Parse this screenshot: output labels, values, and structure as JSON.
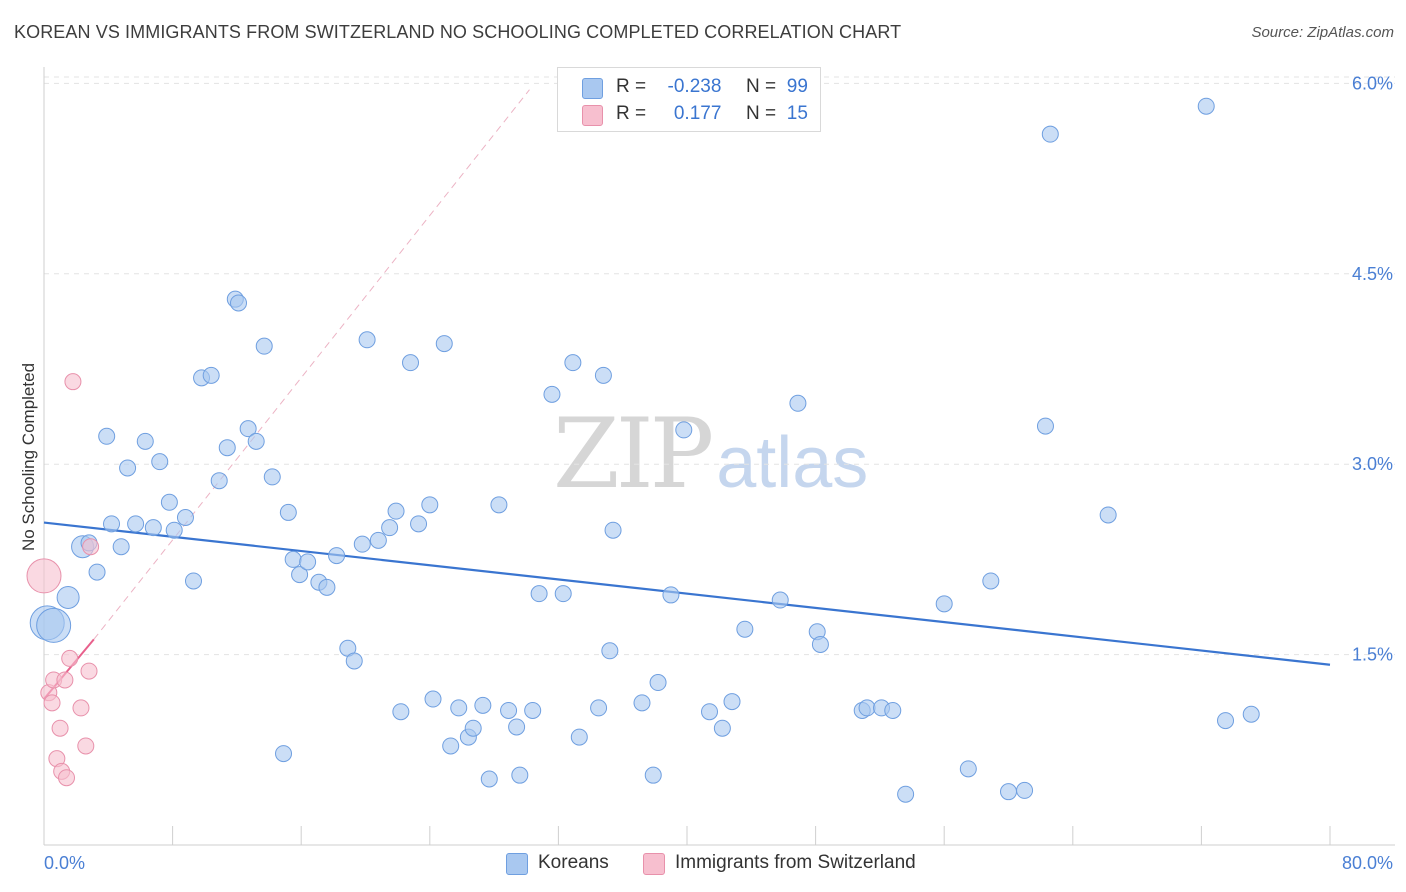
{
  "header": {
    "title": "KOREAN VS IMMIGRANTS FROM SWITZERLAND NO SCHOOLING COMPLETED CORRELATION CHART",
    "source": "Source: ZipAtlas.com"
  },
  "watermark": {
    "zip": "ZIP",
    "atlas": "atlas"
  },
  "legend_top": {
    "rows": [
      {
        "r_label": "R =",
        "r_value": "-0.238",
        "n_label": "N =",
        "n_value": "99",
        "color": "#a9c8f0",
        "border": "#6f9fe0"
      },
      {
        "r_label": "R =",
        "r_value": "0.177",
        "n_label": "N =",
        "n_value": "15",
        "color": "#f7bfcf",
        "border": "#e891ab"
      }
    ]
  },
  "legend_bottom": [
    {
      "label": "Koreans",
      "color": "#a9c8f0",
      "border": "#6f9fe0"
    },
    {
      "label": "Immigrants from Switzerland",
      "color": "#f7bfcf",
      "border": "#e891ab"
    }
  ],
  "colors": {
    "blue_fill": "#a9c8f0",
    "blue_stroke": "#6f9fe0",
    "blue_line": "#3a75d0",
    "pink_fill": "#f7bfcf",
    "pink_stroke": "#e891ab",
    "pink_line": "#e8608c",
    "grid": "#e3e3e3",
    "tick_text": "#4a7fd4"
  },
  "chart_data": {
    "type": "scatter",
    "title": "KOREAN VS IMMIGRANTS FROM SWITZERLAND NO SCHOOLING COMPLETED CORRELATION CHART",
    "xlabel": "",
    "ylabel": "No Schooling Completed",
    "xlim": [
      0,
      80
    ],
    "ylim": [
      0,
      6.2
    ],
    "x_tick_labels": [
      "0.0%",
      "80.0%"
    ],
    "y_ticks": [
      1.5,
      3.0,
      4.5,
      6.0
    ],
    "y_tick_labels": [
      "1.5%",
      "3.0%",
      "4.5%",
      "6.0%"
    ],
    "grid": true,
    "legend_position": "top-center",
    "series": [
      {
        "name": "Koreans",
        "r": -0.238,
        "n": 99,
        "trend": {
          "x": [
            0,
            80
          ],
          "y": [
            2.54,
            1.42
          ]
        },
        "points": [
          [
            0.2,
            1.75,
            3
          ],
          [
            0.6,
            1.73,
            3
          ],
          [
            1.5,
            1.95,
            2
          ],
          [
            2.4,
            2.35,
            2
          ],
          [
            2.8,
            2.38,
            1
          ],
          [
            3.3,
            2.15,
            1
          ],
          [
            3.9,
            3.22,
            1
          ],
          [
            4.2,
            2.53,
            1
          ],
          [
            4.8,
            2.35,
            1
          ],
          [
            5.2,
            2.97,
            1
          ],
          [
            5.7,
            2.53,
            1
          ],
          [
            6.3,
            3.18,
            1
          ],
          [
            6.8,
            2.5,
            1
          ],
          [
            7.2,
            3.02,
            1
          ],
          [
            7.8,
            2.7,
            1
          ],
          [
            8.1,
            2.48,
            1
          ],
          [
            8.8,
            2.58,
            1
          ],
          [
            9.3,
            2.08,
            1
          ],
          [
            9.8,
            3.68,
            1
          ],
          [
            10.4,
            3.7,
            1
          ],
          [
            10.9,
            2.87,
            1
          ],
          [
            11.4,
            3.13,
            1
          ],
          [
            11.9,
            4.3,
            1
          ],
          [
            12.1,
            4.27,
            1
          ],
          [
            12.7,
            3.28,
            1
          ],
          [
            13.2,
            3.18,
            1
          ],
          [
            13.7,
            3.93,
            1
          ],
          [
            14.2,
            2.9,
            1
          ],
          [
            14.9,
            0.72,
            1
          ],
          [
            15.2,
            2.62,
            1
          ],
          [
            15.5,
            2.25,
            1
          ],
          [
            15.9,
            2.13,
            1
          ],
          [
            16.4,
            2.23,
            1
          ],
          [
            17.1,
            2.07,
            1
          ],
          [
            17.6,
            2.03,
            1
          ],
          [
            18.2,
            2.28,
            1
          ],
          [
            18.9,
            1.55,
            1
          ],
          [
            19.3,
            1.45,
            1
          ],
          [
            19.8,
            2.37,
            1
          ],
          [
            20.1,
            3.98,
            1
          ],
          [
            20.8,
            2.4,
            1
          ],
          [
            21.5,
            2.5,
            1
          ],
          [
            21.9,
            2.63,
            1
          ],
          [
            22.2,
            1.05,
            1
          ],
          [
            22.8,
            3.8,
            1
          ],
          [
            23.3,
            2.53,
            1
          ],
          [
            24.0,
            2.68,
            1
          ],
          [
            24.2,
            1.15,
            1
          ],
          [
            24.9,
            3.95,
            1
          ],
          [
            25.3,
            0.78,
            1
          ],
          [
            25.8,
            1.08,
            1
          ],
          [
            26.4,
            0.85,
            1
          ],
          [
            26.7,
            0.92,
            1
          ],
          [
            27.3,
            1.1,
            1
          ],
          [
            27.7,
            0.52,
            1
          ],
          [
            28.3,
            2.68,
            1
          ],
          [
            28.9,
            1.06,
            1
          ],
          [
            29.4,
            0.93,
            1
          ],
          [
            29.6,
            0.55,
            1
          ],
          [
            30.4,
            1.06,
            1
          ],
          [
            30.8,
            1.98,
            1
          ],
          [
            31.6,
            3.55,
            1
          ],
          [
            32.3,
            1.98,
            1
          ],
          [
            32.9,
            3.8,
            1
          ],
          [
            33.3,
            0.85,
            1
          ],
          [
            34.5,
            1.08,
            1
          ],
          [
            34.8,
            3.7,
            1
          ],
          [
            35.2,
            1.53,
            1
          ],
          [
            35.4,
            2.48,
            1
          ],
          [
            37.2,
            1.12,
            1
          ],
          [
            37.9,
            0.55,
            1
          ],
          [
            38.2,
            1.28,
            1
          ],
          [
            39.0,
            1.97,
            1
          ],
          [
            39.8,
            3.27,
            1
          ],
          [
            41.4,
            1.05,
            1
          ],
          [
            42.2,
            0.92,
            1
          ],
          [
            42.8,
            1.13,
            1
          ],
          [
            43.6,
            1.7,
            1
          ],
          [
            45.8,
            1.93,
            1
          ],
          [
            46.9,
            3.48,
            1
          ],
          [
            48.1,
            1.68,
            1
          ],
          [
            48.3,
            1.58,
            1
          ],
          [
            50.9,
            1.06,
            1
          ],
          [
            51.2,
            1.08,
            1
          ],
          [
            52.1,
            1.08,
            1
          ],
          [
            52.8,
            1.06,
            1
          ],
          [
            53.6,
            0.4,
            1
          ],
          [
            56.0,
            1.9,
            1
          ],
          [
            57.5,
            0.6,
            1
          ],
          [
            58.9,
            2.08,
            1
          ],
          [
            60.0,
            0.42,
            1
          ],
          [
            61.0,
            0.43,
            1
          ],
          [
            62.3,
            3.3,
            1
          ],
          [
            62.6,
            5.6,
            1
          ],
          [
            66.2,
            2.6,
            1
          ],
          [
            72.3,
            5.82,
            1
          ],
          [
            73.5,
            0.98,
            1
          ],
          [
            75.1,
            1.03,
            1
          ]
        ]
      },
      {
        "name": "Immigrants from Switzerland",
        "r": 0.177,
        "n": 15,
        "trend": {
          "x": [
            0,
            3.1
          ],
          "y": [
            1.15,
            1.62
          ],
          "extended": {
            "x": [
              3.1,
              30.2
            ],
            "y": [
              1.62,
              5.95
            ]
          }
        },
        "points": [
          [
            0.0,
            2.12,
            3
          ],
          [
            0.3,
            1.2,
            1
          ],
          [
            0.5,
            1.12,
            1
          ],
          [
            0.6,
            1.3,
            1
          ],
          [
            0.8,
            0.68,
            1
          ],
          [
            1.0,
            0.92,
            1
          ],
          [
            1.1,
            0.58,
            1
          ],
          [
            1.3,
            1.3,
            1
          ],
          [
            1.4,
            0.53,
            1
          ],
          [
            1.6,
            1.47,
            1
          ],
          [
            1.8,
            3.65,
            1
          ],
          [
            2.3,
            1.08,
            1
          ],
          [
            2.6,
            0.78,
            1
          ],
          [
            2.8,
            1.37,
            1
          ],
          [
            2.9,
            2.35,
            1
          ]
        ]
      }
    ]
  }
}
